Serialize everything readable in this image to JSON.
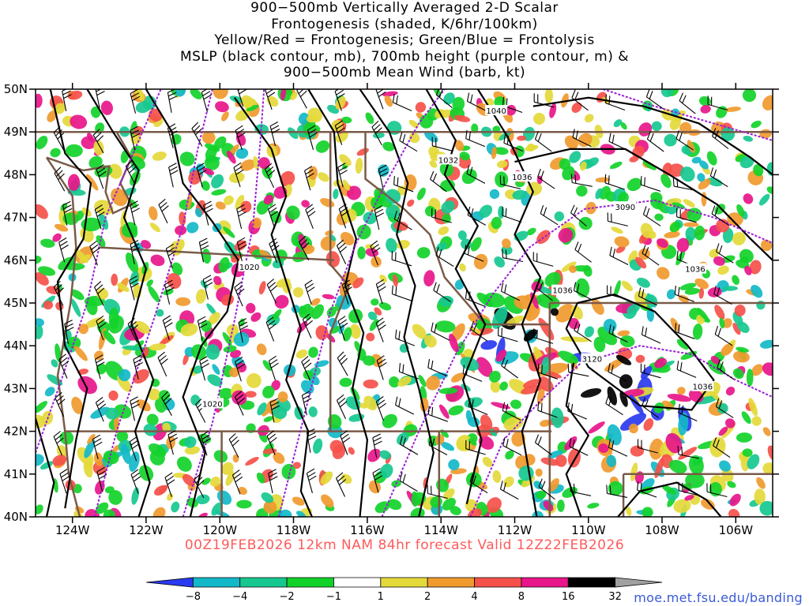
{
  "title": {
    "lines": [
      "900−500mb Vertically Averaged 2-D Scalar",
      "Frontogenesis (shaded, K/6hr/100km)",
      "Yellow/Red = Frontogenesis;  Green/Blue = Frontolysis",
      "MSLP (black contour, mb), 700mb height (purple contour, m) &",
      "900−500mb Mean Wind (barb, kt)"
    ]
  },
  "valid_line": "00Z19FEB2026 12km NAM 84hr forecast Valid 12Z22FEB2026",
  "credit": "moe.met.fsu.edu/banding",
  "map": {
    "lon_range": [
      -125,
      -105
    ],
    "lat_range": [
      40,
      50
    ],
    "lat_ticks": [
      {
        "value": 50,
        "label": "50N"
      },
      {
        "value": 49,
        "label": "49N"
      },
      {
        "value": 48,
        "label": "48N"
      },
      {
        "value": 47,
        "label": "47N"
      },
      {
        "value": 46,
        "label": "46N"
      },
      {
        "value": 45,
        "label": "45N"
      },
      {
        "value": 44,
        "label": "44N"
      },
      {
        "value": 43,
        "label": "43N"
      },
      {
        "value": 42,
        "label": "42N"
      },
      {
        "value": 41,
        "label": "41N"
      },
      {
        "value": 40,
        "label": "40N"
      }
    ],
    "lon_ticks": [
      {
        "value": -124,
        "label": "124W"
      },
      {
        "value": -122,
        "label": "122W"
      },
      {
        "value": -120,
        "label": "120W"
      },
      {
        "value": -118,
        "label": "118W"
      },
      {
        "value": -116,
        "label": "116W"
      },
      {
        "value": -114,
        "label": "114W"
      },
      {
        "value": -112,
        "label": "112W"
      },
      {
        "value": -110,
        "label": "110W"
      },
      {
        "value": -108,
        "label": "108W"
      },
      {
        "value": -106,
        "label": "106W"
      }
    ],
    "mslp_labels": [
      {
        "text": "1040",
        "lon": -112.5,
        "lat": 49.5
      },
      {
        "text": "1032",
        "lon": -113.8,
        "lat": 48.35
      },
      {
        "text": "1036",
        "lon": -111.8,
        "lat": 47.95
      },
      {
        "text": "1036",
        "lon": -107.1,
        "lat": 45.8
      },
      {
        "text": "1036",
        "lon": -110.7,
        "lat": 45.3
      },
      {
        "text": "1036",
        "lon": -106.9,
        "lat": 43.05
      },
      {
        "text": "1020",
        "lon": -119.2,
        "lat": 45.85
      },
      {
        "text": "1020",
        "lon": -120.2,
        "lat": 42.65
      }
    ],
    "height_labels": [
      {
        "text": "3090",
        "lon": -109.0,
        "lat": 47.25
      },
      {
        "text": "3120",
        "lon": -109.9,
        "lat": 43.7
      }
    ],
    "colors": {
      "mslp": "#000000",
      "height": "#9b1fd6",
      "boundaries": "#7a5a48",
      "barbs": "#000000"
    }
  },
  "colorbar": {
    "labels": [
      "−8",
      "−4",
      "−2",
      "−1",
      "1",
      "2",
      "4",
      "8",
      "16",
      "32"
    ],
    "colors": [
      "#2a3af0",
      "#12b8c8",
      "#16c890",
      "#12d22a",
      "#ffffff",
      "#e4d93a",
      "#f09a2e",
      "#f5504a",
      "#e8168a",
      "#000000",
      "#a0a0a0"
    ]
  }
}
